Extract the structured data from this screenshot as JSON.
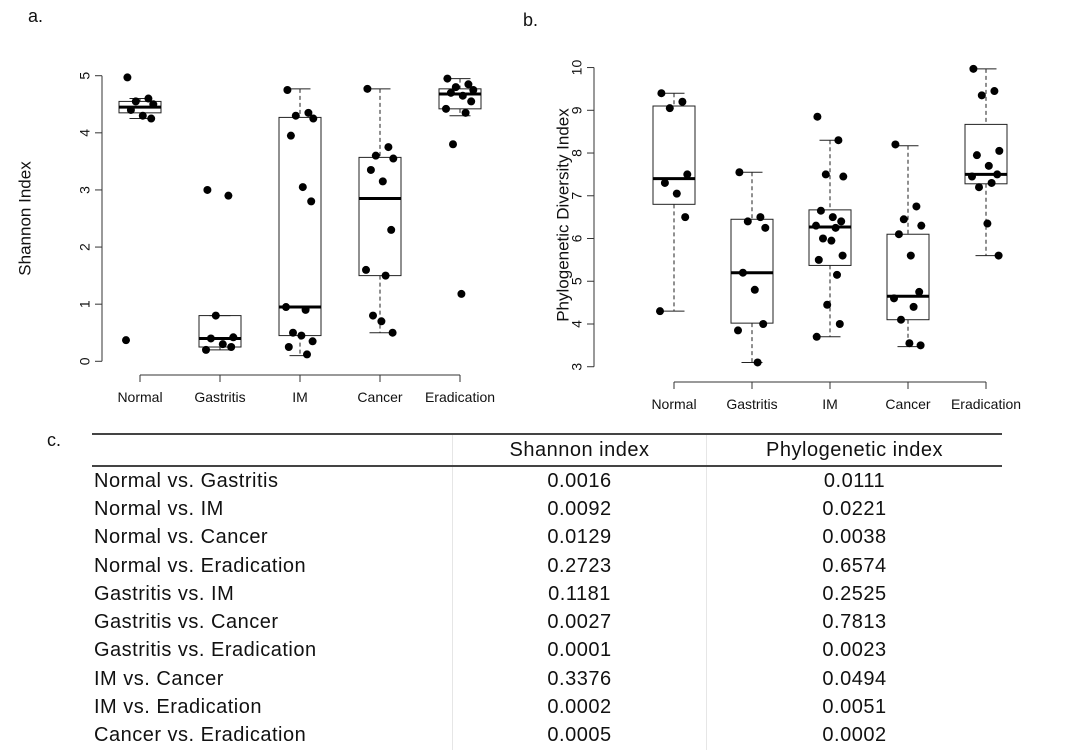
{
  "panels": {
    "a": "a.",
    "b": "b.",
    "c": "c."
  },
  "chart_data": [
    {
      "type": "box",
      "ylabel": "Shannon Index",
      "categories": [
        "Normal",
        "Gastritis",
        "IM",
        "Cancer",
        "Eradication"
      ],
      "ylim": [
        -0.1,
        5.1
      ],
      "yticks": [
        0,
        1,
        2,
        3,
        4,
        5
      ],
      "boxes": [
        {
          "min": 4.25,
          "q1": 4.35,
          "median": 4.45,
          "q3": 4.55,
          "max": 4.6
        },
        {
          "min": 0.2,
          "q1": 0.25,
          "median": 0.4,
          "q3": 0.8,
          "max": 0.8
        },
        {
          "min": 0.1,
          "q1": 0.45,
          "median": 0.95,
          "q3": 4.27,
          "max": 4.77
        },
        {
          "min": 0.5,
          "q1": 1.5,
          "median": 2.85,
          "q3": 3.57,
          "max": 4.77
        },
        {
          "min": 4.3,
          "q1": 4.42,
          "median": 4.68,
          "q3": 4.77,
          "max": 4.95
        }
      ],
      "points": [
        [
          4.97,
          4.6,
          4.55,
          4.5,
          4.4,
          4.3,
          4.25,
          0.37
        ],
        [
          3.0,
          2.9,
          0.8,
          0.42,
          0.4,
          0.3,
          0.25,
          0.2
        ],
        [
          4.75,
          4.35,
          4.3,
          4.25,
          3.95,
          3.05,
          2.8,
          0.95,
          0.9,
          0.5,
          0.45,
          0.35,
          0.25,
          0.12
        ],
        [
          4.77,
          3.75,
          3.6,
          3.55,
          3.35,
          3.15,
          2.3,
          1.6,
          1.5,
          0.8,
          0.7,
          0.5
        ],
        [
          4.95,
          4.85,
          4.8,
          4.75,
          4.7,
          4.65,
          4.55,
          4.42,
          4.35,
          3.8,
          1.18
        ]
      ]
    },
    {
      "type": "box",
      "ylabel": "Phylogenetic Diversity Index",
      "categories": [
        "Normal",
        "Gastritis",
        "IM",
        "Cancer",
        "Eradication"
      ],
      "ylim": [
        2.9,
        10.2
      ],
      "yticks": [
        3,
        4,
        5,
        6,
        7,
        8,
        9,
        10
      ],
      "boxes": [
        {
          "min": 4.3,
          "q1": 6.8,
          "median": 7.4,
          "q3": 9.1,
          "max": 9.4
        },
        {
          "min": 3.1,
          "q1": 4.02,
          "median": 5.2,
          "q3": 6.45,
          "max": 7.55
        },
        {
          "min": 3.7,
          "q1": 5.37,
          "median": 6.27,
          "q3": 6.67,
          "max": 8.3
        },
        {
          "min": 3.47,
          "q1": 4.1,
          "median": 4.65,
          "q3": 6.1,
          "max": 8.17
        },
        {
          "min": 5.6,
          "q1": 7.28,
          "median": 7.5,
          "q3": 8.67,
          "max": 9.97
        }
      ],
      "points": [
        [
          9.4,
          9.2,
          9.05,
          7.5,
          7.3,
          7.05,
          6.5,
          4.3
        ],
        [
          7.55,
          6.5,
          6.4,
          6.25,
          5.2,
          4.8,
          4.0,
          3.85,
          3.1
        ],
        [
          8.85,
          8.3,
          7.5,
          7.45,
          6.65,
          6.5,
          6.4,
          6.3,
          6.25,
          6.0,
          5.95,
          5.6,
          5.5,
          5.15,
          4.45,
          4.0,
          3.7
        ],
        [
          8.2,
          6.75,
          6.45,
          6.3,
          6.1,
          5.6,
          4.75,
          4.6,
          4.4,
          4.1,
          3.55,
          3.5
        ],
        [
          9.97,
          9.45,
          9.35,
          8.05,
          7.95,
          7.7,
          7.5,
          7.45,
          7.3,
          7.2,
          6.35,
          5.6
        ]
      ]
    }
  ],
  "table": {
    "headers": [
      "",
      "Shannon index",
      "Phylogenetic index"
    ],
    "rows": [
      [
        "Normal vs. Gastritis",
        "0.0016",
        "0.0111"
      ],
      [
        "Normal vs. IM",
        "0.0092",
        "0.0221"
      ],
      [
        "Normal vs. Cancer",
        "0.0129",
        "0.0038"
      ],
      [
        "Normal vs. Eradication",
        "0.2723",
        "0.6574"
      ],
      [
        "Gastritis vs. IM",
        "0.1181",
        "0.2525"
      ],
      [
        "Gastritis vs. Cancer",
        "0.0027",
        "0.7813"
      ],
      [
        "Gastritis vs. Eradication",
        "0.0001",
        "0.0023"
      ],
      [
        "IM vs. Cancer",
        "0.3376",
        "0.0494"
      ],
      [
        "IM vs. Eradication",
        "0.0002",
        "0.0051"
      ],
      [
        "Cancer vs. Eradication",
        "0.0005",
        "0.0002"
      ]
    ]
  }
}
